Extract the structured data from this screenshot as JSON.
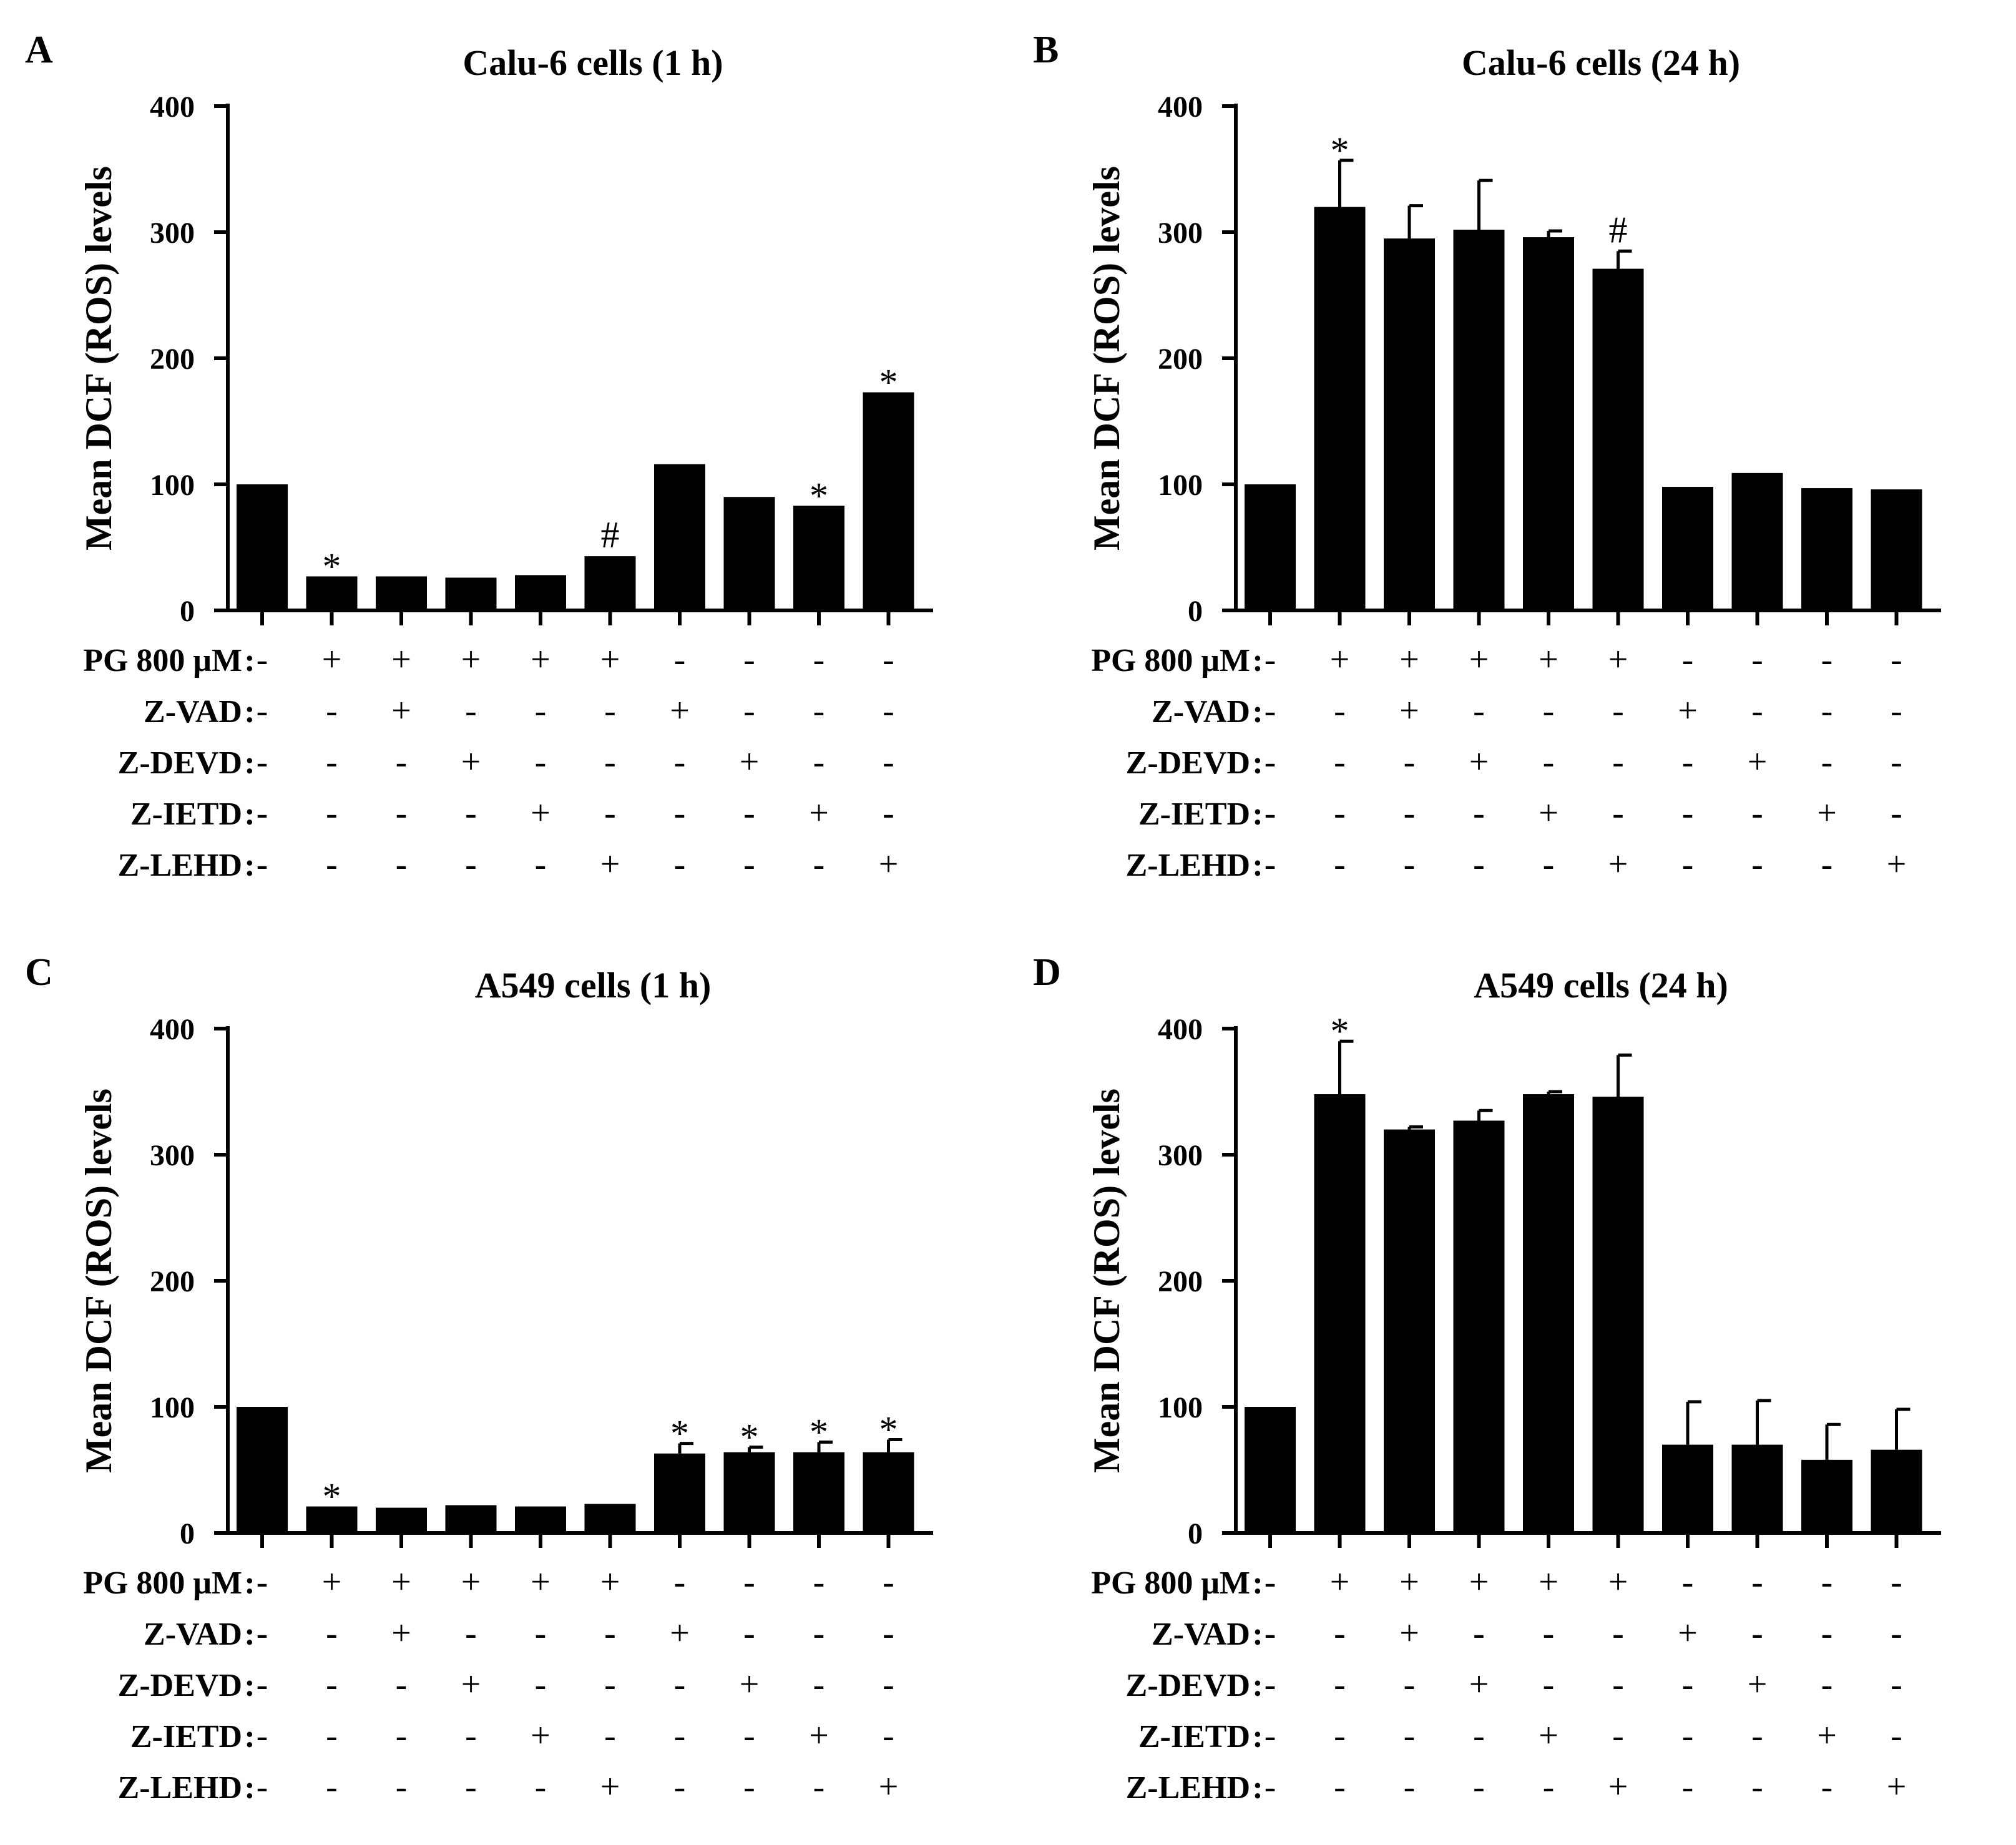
{
  "chart_data": [
    {
      "panel": "A",
      "type": "bar",
      "title": "Calu-6 cells (1 h)",
      "ylabel": "Mean DCF (ROS) levels",
      "xlabel": "",
      "ylim": [
        0,
        400
      ],
      "yticks": [
        0,
        100,
        200,
        300,
        400
      ],
      "values": [
        100,
        27,
        27,
        26,
        28,
        43,
        116,
        90,
        83,
        173
      ],
      "errors": [
        0,
        0,
        0,
        0,
        0,
        0,
        0,
        0,
        0,
        0
      ],
      "annotations": [
        "",
        "*",
        "",
        "",
        "",
        "#",
        "",
        "",
        "*",
        "*"
      ],
      "conditions": [
        {
          "label": "PG 800 μM",
          "signs": [
            "-",
            "+",
            "+",
            "+",
            "+",
            "+",
            "-",
            "-",
            "-",
            "-"
          ]
        },
        {
          "label": "Z-VAD",
          "signs": [
            "-",
            "-",
            "+",
            "-",
            "-",
            "-",
            "+",
            "-",
            "-",
            "-"
          ]
        },
        {
          "label": "Z-DEVD",
          "signs": [
            "-",
            "-",
            "-",
            "+",
            "-",
            "-",
            "-",
            "+",
            "-",
            "-"
          ]
        },
        {
          "label": "Z-IETD",
          "signs": [
            "-",
            "-",
            "-",
            "-",
            "+",
            "-",
            "-",
            "-",
            "+",
            "-"
          ]
        },
        {
          "label": "Z-LEHD",
          "signs": [
            "-",
            "-",
            "-",
            "-",
            "-",
            "+",
            "-",
            "-",
            "-",
            "+"
          ]
        }
      ]
    },
    {
      "panel": "B",
      "type": "bar",
      "title": "Calu-6 cells (24 h)",
      "ylabel": "Mean DCF (ROS) levels",
      "xlabel": "",
      "ylim": [
        0,
        400
      ],
      "yticks": [
        0,
        100,
        200,
        300,
        400
      ],
      "values": [
        100,
        320,
        295,
        302,
        296,
        271,
        98,
        109,
        97,
        96
      ],
      "errors": [
        0,
        37,
        26,
        39,
        5,
        14,
        0,
        0,
        0,
        0
      ],
      "annotations": [
        "",
        "*",
        "",
        "",
        "",
        "#",
        "",
        "",
        "",
        ""
      ],
      "conditions": [
        {
          "label": "PG 800 μM",
          "signs": [
            "-",
            "+",
            "+",
            "+",
            "+",
            "+",
            "-",
            "-",
            "-",
            "-"
          ]
        },
        {
          "label": "Z-VAD",
          "signs": [
            "-",
            "-",
            "+",
            "-",
            "-",
            "-",
            "+",
            "-",
            "-",
            "-"
          ]
        },
        {
          "label": "Z-DEVD",
          "signs": [
            "-",
            "-",
            "-",
            "+",
            "-",
            "-",
            "-",
            "+",
            "-",
            "-"
          ]
        },
        {
          "label": "Z-IETD",
          "signs": [
            "-",
            "-",
            "-",
            "-",
            "+",
            "-",
            "-",
            "-",
            "+",
            "-"
          ]
        },
        {
          "label": "Z-LEHD",
          "signs": [
            "-",
            "-",
            "-",
            "-",
            "-",
            "+",
            "-",
            "-",
            "-",
            "+"
          ]
        }
      ]
    },
    {
      "panel": "C",
      "type": "bar",
      "title": "A549 cells (1 h)",
      "ylabel": "Mean DCF (ROS) levels",
      "xlabel": "",
      "ylim": [
        0,
        400
      ],
      "yticks": [
        0,
        100,
        200,
        300,
        400
      ],
      "values": [
        100,
        21,
        20,
        22,
        21,
        23,
        63,
        64,
        64,
        64
      ],
      "errors": [
        0,
        0,
        0,
        0,
        0,
        0,
        8,
        4,
        8,
        10
      ],
      "annotations": [
        "",
        "*",
        "",
        "",
        "",
        "",
        "*",
        "*",
        "*",
        "*"
      ],
      "conditions": [
        {
          "label": "PG 800 μM",
          "signs": [
            "-",
            "+",
            "+",
            "+",
            "+",
            "+",
            "-",
            "-",
            "-",
            "-"
          ]
        },
        {
          "label": "Z-VAD",
          "signs": [
            "-",
            "-",
            "+",
            "-",
            "-",
            "-",
            "+",
            "-",
            "-",
            "-"
          ]
        },
        {
          "label": "Z-DEVD",
          "signs": [
            "-",
            "-",
            "-",
            "+",
            "-",
            "-",
            "-",
            "+",
            "-",
            "-"
          ]
        },
        {
          "label": "Z-IETD",
          "signs": [
            "-",
            "-",
            "-",
            "-",
            "+",
            "-",
            "-",
            "-",
            "+",
            "-"
          ]
        },
        {
          "label": "Z-LEHD",
          "signs": [
            "-",
            "-",
            "-",
            "-",
            "-",
            "+",
            "-",
            "-",
            "-",
            "+"
          ]
        }
      ]
    },
    {
      "panel": "D",
      "type": "bar",
      "title": "A549 cells (24 h)",
      "ylabel": "Mean DCF (ROS) levels",
      "xlabel": "",
      "ylim": [
        0,
        400
      ],
      "yticks": [
        0,
        100,
        200,
        300,
        400
      ],
      "values": [
        100,
        348,
        320,
        327,
        348,
        346,
        70,
        70,
        58,
        66
      ],
      "errors": [
        0,
        42,
        2,
        8,
        2,
        33,
        34,
        35,
        28,
        32
      ],
      "annotations": [
        "",
        "*",
        "",
        "",
        "",
        "",
        "",
        "",
        "",
        ""
      ],
      "conditions": [
        {
          "label": "PG 800 μM",
          "signs": [
            "-",
            "+",
            "+",
            "+",
            "+",
            "+",
            "-",
            "-",
            "-",
            "-"
          ]
        },
        {
          "label": "Z-VAD",
          "signs": [
            "-",
            "-",
            "+",
            "-",
            "-",
            "-",
            "+",
            "-",
            "-",
            "-"
          ]
        },
        {
          "label": "Z-DEVD",
          "signs": [
            "-",
            "-",
            "-",
            "+",
            "-",
            "-",
            "-",
            "+",
            "-",
            "-"
          ]
        },
        {
          "label": "Z-IETD",
          "signs": [
            "-",
            "-",
            "-",
            "-",
            "+",
            "-",
            "-",
            "-",
            "+",
            "-"
          ]
        },
        {
          "label": "Z-LEHD",
          "signs": [
            "-",
            "-",
            "-",
            "-",
            "-",
            "+",
            "-",
            "-",
            "-",
            "+"
          ]
        }
      ]
    }
  ]
}
